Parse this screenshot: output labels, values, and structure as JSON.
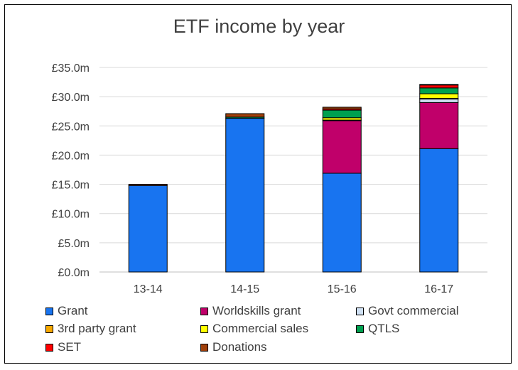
{
  "chart_data": {
    "type": "bar",
    "stacked": true,
    "title": "ETF income by year",
    "categories": [
      "13-14",
      "14-15",
      "15-16",
      "16-17"
    ],
    "ylim": [
      0,
      35
    ],
    "yticks": [
      0,
      5,
      10,
      15,
      20,
      25,
      30,
      35
    ],
    "ytick_labels": [
      "£0.0m",
      "£5.0m",
      "£10.0m",
      "£15.0m",
      "£20.0m",
      "£25.0m",
      "£30.0m",
      "£35.0m"
    ],
    "grid": true,
    "legend_position": "bottom",
    "series": [
      {
        "name": "Grant",
        "color": "#1874F0",
        "values": [
          14.8,
          26.3,
          16.9,
          21.1
        ]
      },
      {
        "name": "Worldskills grant",
        "color": "#C0006A",
        "values": [
          0,
          0,
          9.0,
          7.9
        ]
      },
      {
        "name": "Govt commercial",
        "color": "#CFE0F3",
        "values": [
          0,
          0,
          0,
          0.6
        ]
      },
      {
        "name": "3rd party grant",
        "color": "#F7A800",
        "values": [
          0,
          0,
          0.1,
          0.1
        ]
      },
      {
        "name": "Commercial sales",
        "color": "#FFFF00",
        "values": [
          0,
          0,
          0.4,
          0.8
        ]
      },
      {
        "name": "QTLS",
        "color": "#00A050",
        "values": [
          0,
          0.2,
          1.3,
          1.0
        ]
      },
      {
        "name": "SET",
        "color": "#FF0000",
        "values": [
          0,
          0,
          0.2,
          0.5
        ]
      },
      {
        "name": "Donations",
        "color": "#A0400A",
        "values": [
          0.2,
          0.6,
          0.3,
          0.1
        ]
      }
    ]
  }
}
